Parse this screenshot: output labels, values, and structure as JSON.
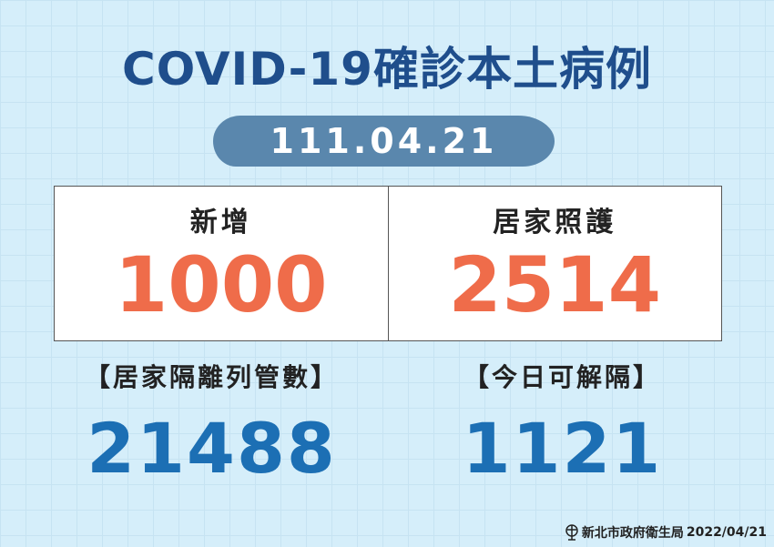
{
  "title": "COVID-19確診本土病例",
  "date": "111.04.21",
  "new_cases": {
    "label": "新增",
    "value": "1000"
  },
  "home_care": {
    "label": "居家照護",
    "value": "2514"
  },
  "quarantine": {
    "label": "【居家隔離列管數】",
    "value": "21488"
  },
  "released": {
    "label": "【今日可解隔】",
    "value": "1121"
  },
  "footer": {
    "org": "新北市政府衛生局",
    "date": "2022/04/21",
    "logo_icon": "new-taipei-health-logo"
  },
  "colors": {
    "title": "#1f4e8c",
    "highlight": "#ef6c4a",
    "number": "#1c6fb4",
    "date_bg": "#5a87ad"
  }
}
